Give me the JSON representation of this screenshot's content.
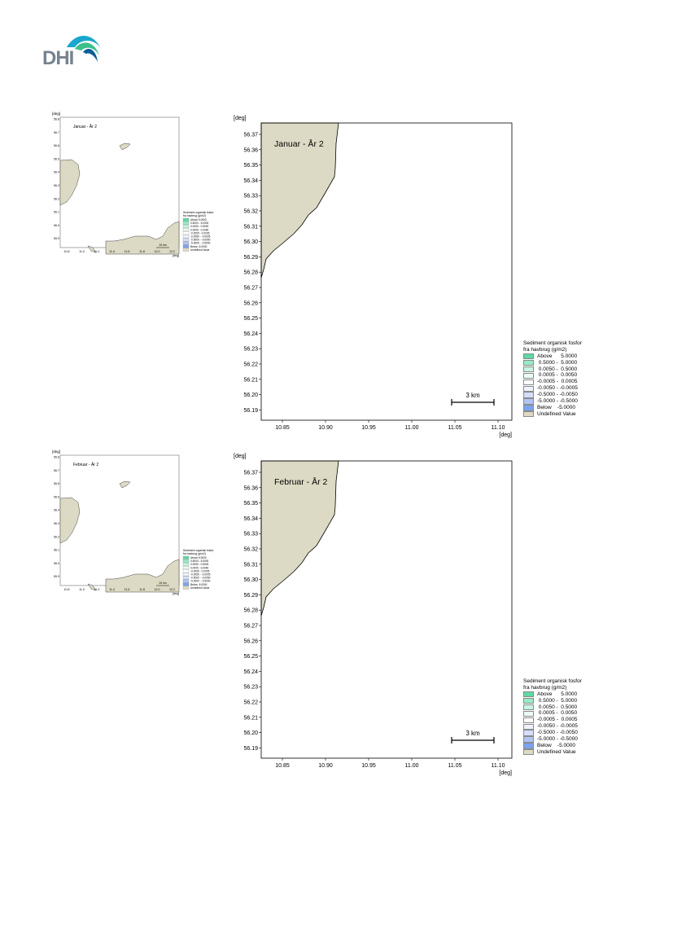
{
  "logo": {
    "text": "DHI",
    "colors": {
      "wave1": "#1aa6cf",
      "wave2": "#3dbf8a",
      "wave3": "#0b5e96",
      "text": "#7b8690"
    }
  },
  "legend": {
    "title_line1": "Sediment organisk fosfor",
    "title_line2": "fra havbrug (g/m2)",
    "items": [
      {
        "label": "Above      5.0000",
        "color": "#5fd8a4"
      },
      {
        "label": " 0.5000 -  5.0000",
        "color": "#9ae9c6"
      },
      {
        "label": " 0.0050 -  0.5000",
        "color": "#c8f5e1"
      },
      {
        "label": " 0.0005 -  0.0050",
        "color": "#eafcf3"
      },
      {
        "label": "-0.0005 -  0.0005",
        "color": "#ffffff"
      },
      {
        "label": "-0.0050 - -0.0005",
        "color": "#eef2fd"
      },
      {
        "label": "-0.5000 - -0.0050",
        "color": "#d4defa"
      },
      {
        "label": "-5.0000 - -0.5000",
        "color": "#b1c4f4"
      },
      {
        "label": "Below    -5.0000",
        "color": "#7aa3ec"
      },
      {
        "label": "Undefined Value",
        "color": "#dcdac4"
      }
    ]
  },
  "panels": [
    {
      "month_label": "Januar - År 2",
      "thumb_label": "Januar - År 2",
      "thumb_unit": "[deg]"
    },
    {
      "month_label": "Februar - År 2",
      "thumb_label": "Februar - År 2",
      "thumb_unit": "[deg]"
    }
  ],
  "map_axes": {
    "unit": "[deg]",
    "y_ticks": [
      "56.37",
      "56.36",
      "56.35",
      "56.34",
      "56.33",
      "56.32",
      "56.31",
      "56.30",
      "56.29",
      "56.28",
      "56.27",
      "56.26",
      "56.25",
      "56.24",
      "56.23",
      "56.22",
      "56.21",
      "56.20",
      "56.19"
    ],
    "x_ticks": [
      "10.85",
      "10.90",
      "10.95",
      "11.00",
      "11.05",
      "11.10"
    ],
    "scale_bar_label": "3 km",
    "land_color": "#dcdac4"
  },
  "thumb_axes": {
    "y_ticks": [
      "56.8",
      "56.7",
      "56.6",
      "56.5",
      "56.4",
      "56.3",
      "56.2",
      "56.1",
      "56.0",
      "55.9"
    ],
    "x_ticks": [
      "10.8",
      "11.0",
      "11.2",
      "11.4",
      "11.6",
      "11.8",
      "12.0",
      "12.2"
    ],
    "scale_bar_label": "10 km"
  }
}
